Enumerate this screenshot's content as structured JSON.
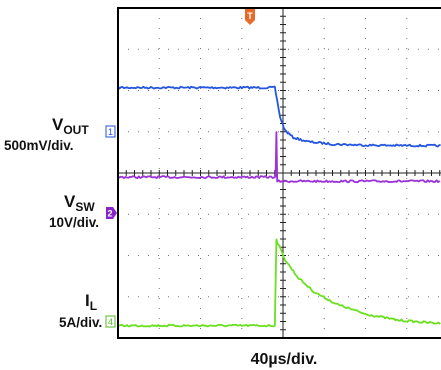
{
  "chart_data": {
    "type": "line",
    "xlabel": "40µs/div.",
    "x_unit": "µs",
    "x_per_div": 40,
    "y_divisions": 8,
    "trigger_marker": "T",
    "grid": true,
    "channels": [
      {
        "id": "1",
        "name": "VOUT",
        "name_main": "V",
        "name_sub": "OUT",
        "scale": "500mV/div.",
        "color": "#2255e0",
        "marker_color": "#2255e0",
        "points_div": [
          [
            0,
            6.07
          ],
          [
            3.8,
            6.07
          ],
          [
            3.86,
            5.75
          ],
          [
            3.93,
            5.35
          ],
          [
            4.05,
            5.03
          ],
          [
            4.25,
            4.86
          ],
          [
            4.6,
            4.76
          ],
          [
            5.2,
            4.7
          ],
          [
            6.0,
            4.675
          ],
          [
            7.0,
            4.665
          ],
          [
            8.0,
            4.66
          ],
          [
            9.1,
            4.66
          ]
        ]
      },
      {
        "id": "2",
        "name": "VSW",
        "name_main": "V",
        "name_sub": "SW",
        "scale": "10V/div.",
        "color": "#9b32d8",
        "marker_color": "#8822cc",
        "points_div": [
          [
            0,
            3.9
          ],
          [
            3.82,
            3.9
          ],
          [
            3.84,
            4.97
          ],
          [
            3.86,
            3.8
          ],
          [
            9.1,
            3.8
          ]
        ]
      },
      {
        "id": "4",
        "name": "IL",
        "name_main": "I",
        "name_sub": "L",
        "scale": "5A/div.",
        "color": "#6ae020",
        "marker_color": "#55bb22",
        "points_div": [
          [
            0,
            0.3
          ],
          [
            3.8,
            0.3
          ],
          [
            3.84,
            2.38
          ],
          [
            4.05,
            1.9
          ],
          [
            4.35,
            1.48
          ],
          [
            4.75,
            1.12
          ],
          [
            5.3,
            0.82
          ],
          [
            6.0,
            0.58
          ],
          [
            6.8,
            0.43
          ],
          [
            7.7,
            0.36
          ],
          [
            9.1,
            0.33
          ]
        ]
      }
    ]
  }
}
